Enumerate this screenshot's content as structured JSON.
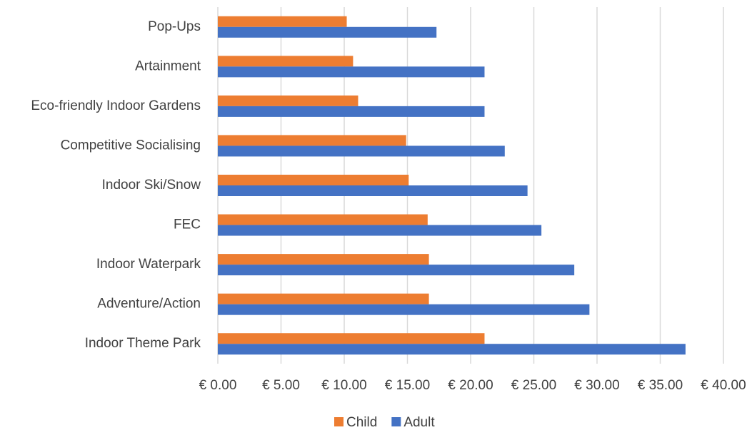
{
  "chart_data": {
    "type": "hbar",
    "categories": [
      "Pop-Ups",
      "Artainment",
      "Eco-friendly Indoor Gardens",
      "Competitive Socialising",
      "Indoor Ski/Snow",
      "FEC",
      "Indoor Waterpark",
      "Adventure/Action",
      "Indoor Theme Park"
    ],
    "series": [
      {
        "name": "Child",
        "color": "#ed7d31",
        "values": [
          10.2,
          10.7,
          11.1,
          14.9,
          15.1,
          16.6,
          16.7,
          16.7,
          21.1
        ]
      },
      {
        "name": "Adult",
        "color": "#4472c4",
        "values": [
          17.3,
          21.1,
          21.1,
          22.7,
          24.5,
          25.6,
          28.2,
          29.4,
          37.0
        ]
      }
    ],
    "xlim": [
      0,
      40
    ],
    "xticks": [
      {
        "value": 0,
        "label": "€ 0.00"
      },
      {
        "value": 5,
        "label": "€ 5.00"
      },
      {
        "value": 10,
        "label": "€ 10.00"
      },
      {
        "value": 15,
        "label": "€ 15.00"
      },
      {
        "value": 20,
        "label": "€ 20.00"
      },
      {
        "value": 25,
        "label": "€ 25.00"
      },
      {
        "value": 30,
        "label": "€ 30.00"
      },
      {
        "value": 35,
        "label": "€ 35.00"
      },
      {
        "value": 40,
        "label": "€ 40.00"
      }
    ],
    "grid": true,
    "legend": "bottom"
  }
}
